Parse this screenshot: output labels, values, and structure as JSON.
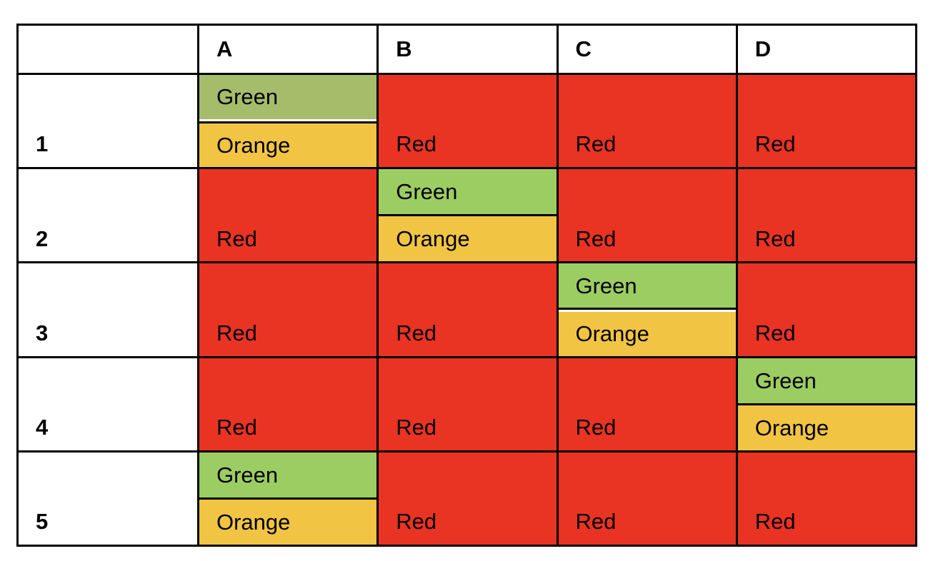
{
  "chart_data": {
    "type": "table",
    "title": "",
    "columns": [
      "A",
      "B",
      "C",
      "D"
    ],
    "row_labels": [
      "1",
      "2",
      "3",
      "4",
      "5"
    ],
    "cells": [
      [
        "Green / Orange",
        "Red",
        "Red",
        "Red"
      ],
      [
        "Red",
        "Green / Orange",
        "Red",
        "Red"
      ],
      [
        "Red",
        "Red",
        "Green / Orange",
        "Red"
      ],
      [
        "Red",
        "Red",
        "Red",
        "Green / Orange"
      ],
      [
        "Green / Orange",
        "Red",
        "Red",
        "Red"
      ]
    ],
    "legend_position": "none",
    "grid": true
  },
  "colors": {
    "red": "#E93323",
    "green_olive": "#A5BD6B",
    "green_lime": "#9CCD63",
    "orange": "#F2C444",
    "border": "#000000",
    "background": "#FFFFFF",
    "text": "#000000"
  },
  "table": {
    "column_headers": [
      {
        "label": ""
      },
      {
        "label": "A"
      },
      {
        "label": "B"
      },
      {
        "label": "C"
      },
      {
        "label": "D"
      }
    ],
    "rows": [
      {
        "label": "1",
        "cells": [
          {
            "type": "split",
            "top_text": "Green",
            "bottom_text": "Orange",
            "top_color": "#A5BD6B",
            "bottom_color": "#F2C444",
            "white_gap": "above"
          },
          {
            "type": "solid",
            "text": "Red",
            "color": "#E93323"
          },
          {
            "type": "solid",
            "text": "Red",
            "color": "#E93323"
          },
          {
            "type": "solid",
            "text": "Red",
            "color": "#E93323"
          }
        ]
      },
      {
        "label": "2",
        "cells": [
          {
            "type": "solid",
            "text": "Red",
            "color": "#E93323"
          },
          {
            "type": "split",
            "top_text": "Green",
            "bottom_text": "Orange",
            "top_color": "#9CCD63",
            "bottom_color": "#F2C444",
            "white_gap": "none"
          },
          {
            "type": "solid",
            "text": "Red",
            "color": "#E93323"
          },
          {
            "type": "solid",
            "text": "Red",
            "color": "#E93323"
          }
        ]
      },
      {
        "label": "3",
        "cells": [
          {
            "type": "solid",
            "text": "Red",
            "color": "#E93323"
          },
          {
            "type": "solid",
            "text": "Red",
            "color": "#E93323"
          },
          {
            "type": "split",
            "top_text": "Green",
            "bottom_text": "Orange",
            "top_color": "#9CCD63",
            "bottom_color": "#F2C444",
            "white_gap": "below"
          },
          {
            "type": "solid",
            "text": "Red",
            "color": "#E93323"
          }
        ]
      },
      {
        "label": "4",
        "cells": [
          {
            "type": "solid",
            "text": "Red",
            "color": "#E93323"
          },
          {
            "type": "solid",
            "text": "Red",
            "color": "#E93323"
          },
          {
            "type": "solid",
            "text": "Red",
            "color": "#E93323"
          },
          {
            "type": "split",
            "top_text": "Green",
            "bottom_text": "Orange",
            "top_color": "#9CCD63",
            "bottom_color": "#F2C444",
            "white_gap": "none"
          }
        ]
      },
      {
        "label": "5",
        "cells": [
          {
            "type": "split",
            "top_text": "Green",
            "bottom_text": "Orange",
            "top_color": "#9CCD63",
            "bottom_color": "#F2C444",
            "white_gap": "none"
          },
          {
            "type": "solid",
            "text": "Red",
            "color": "#E93323"
          },
          {
            "type": "solid",
            "text": "Red",
            "color": "#E93323"
          },
          {
            "type": "solid",
            "text": "Red",
            "color": "#E93323"
          }
        ]
      }
    ]
  }
}
